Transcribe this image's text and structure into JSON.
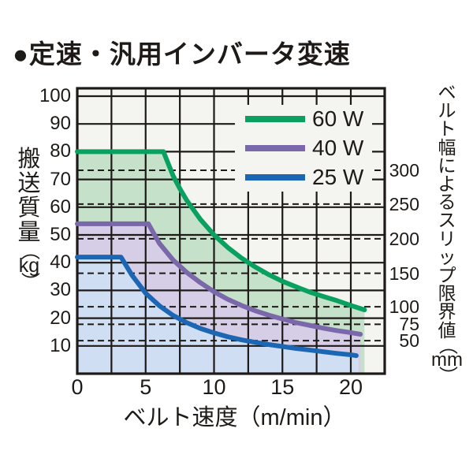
{
  "page": {
    "background": "#ffffff"
  },
  "chart_data": {
    "type": "area",
    "title": "●定速・汎用インバータ変速",
    "xlabel": "ベルト速度（m/min）",
    "ylabel": "搬送質量（kg）",
    "ylabel_chars": "搬送質量",
    "ylabel_unit": "kg",
    "y2label": "ベルト幅によるスリップ限界値（mm）",
    "y2label_chars": "ベルト幅によるスリップ限界値",
    "y2label_unit": "mm",
    "xlim": [
      0,
      22.5
    ],
    "ylim": [
      0,
      102.8
    ],
    "xticks": [
      0,
      5,
      10,
      15,
      20
    ],
    "xgrid": [
      2.5,
      5,
      7.5,
      10,
      12.5,
      15,
      17.5,
      20
    ],
    "yticks": [
      10,
      20,
      30,
      40,
      50,
      60,
      70,
      80,
      90,
      100
    ],
    "grid": true,
    "legend_position": "top-right",
    "colors": {
      "ink": "#1d1a17",
      "plot_bg": "#f4f4f1",
      "legend_bg": "#f4f4f1",
      "green_line": "#0aa05f",
      "purple_line": "#7b68ab",
      "blue_line": "#1c67b4",
      "green_fill": "#c6e1ca",
      "purple_fill": "#d6cee6",
      "blue_fill": "#cfdef2"
    },
    "slip_limit_lines": [
      {
        "mm": "300",
        "kg": 73.3
      },
      {
        "mm": "250",
        "kg": 61.1
      },
      {
        "mm": "200",
        "kg": 48.6
      },
      {
        "mm": "150",
        "kg": 36.2
      },
      {
        "mm": "100",
        "kg": 24.1
      },
      {
        "mm": "75",
        "kg": 17.8
      },
      {
        "mm": "50",
        "kg": 11.9
      }
    ],
    "series": [
      {
        "name": "60 W",
        "color": "#0aa05f",
        "fill": "#c6e1ca",
        "flat_kg": 80,
        "fill_end_x": 21.0,
        "points": [
          [
            0,
            80
          ],
          [
            6.3,
            80
          ],
          [
            7,
            71.4
          ],
          [
            7.5,
            66.7
          ],
          [
            8,
            62.5
          ],
          [
            9,
            55.6
          ],
          [
            10,
            50
          ],
          [
            11,
            45.5
          ],
          [
            12,
            41.7
          ],
          [
            13,
            38.5
          ],
          [
            14,
            35.7
          ],
          [
            15,
            33.3
          ],
          [
            16,
            31.3
          ],
          [
            17,
            29.4
          ],
          [
            18,
            27.8
          ],
          [
            19,
            26.3
          ],
          [
            20,
            24.6
          ],
          [
            21,
            23
          ]
        ]
      },
      {
        "name": "40 W",
        "color": "#7b68ab",
        "fill": "#d6cee6",
        "flat_kg": 54,
        "fill_end_x": 20.75,
        "points": [
          [
            0,
            54
          ],
          [
            5.2,
            54
          ],
          [
            6,
            47
          ],
          [
            7,
            41
          ],
          [
            8,
            36.5
          ],
          [
            9,
            32.8
          ],
          [
            10,
            29.5
          ],
          [
            11,
            26.8
          ],
          [
            12,
            24.6
          ],
          [
            13,
            22.7
          ],
          [
            14,
            21.1
          ],
          [
            15,
            19.7
          ],
          [
            16,
            18.4
          ],
          [
            17,
            17.4
          ],
          [
            18,
            16.4
          ],
          [
            19,
            15.5
          ],
          [
            20,
            14.8
          ],
          [
            20.7,
            14.2
          ]
        ]
      },
      {
        "name": "25 W",
        "color": "#1c67b4",
        "fill": "#cfdef2",
        "flat_kg": 42,
        "fill_end_x": 20.55,
        "points": [
          [
            0,
            42
          ],
          [
            3.2,
            42
          ],
          [
            4,
            35.5
          ],
          [
            5,
            29
          ],
          [
            6,
            24.5
          ],
          [
            7,
            21
          ],
          [
            8,
            18.4
          ],
          [
            9,
            16.3
          ],
          [
            10,
            14.7
          ],
          [
            11,
            13.3
          ],
          [
            12,
            12.2
          ],
          [
            13,
            11.3
          ],
          [
            14,
            10.5
          ],
          [
            15,
            9.8
          ],
          [
            16,
            9.1
          ],
          [
            17,
            8.5
          ],
          [
            18,
            7.9
          ],
          [
            19,
            7.3
          ],
          [
            20,
            6.8
          ],
          [
            20.4,
            6.5
          ]
        ]
      }
    ]
  }
}
